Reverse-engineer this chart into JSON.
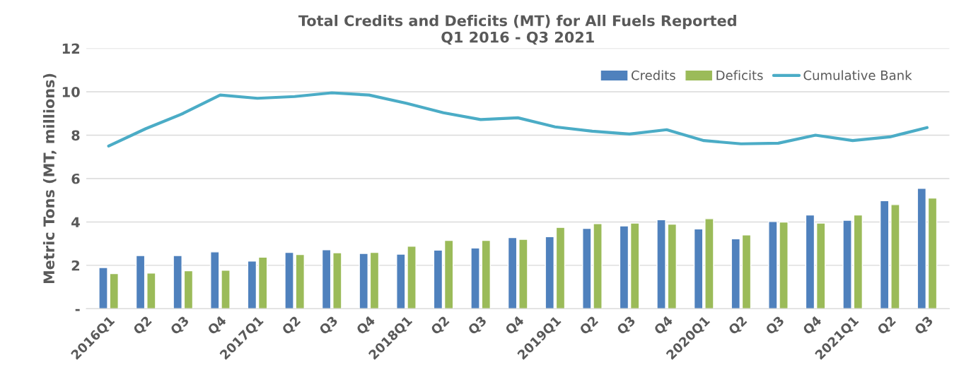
{
  "chart_data": {
    "type": "bar",
    "title": "Total Credits and Deficits (MT) for All Fuels Reported\nQ1 2016 - Q3 2021",
    "ylabel": "Metric Tons (MT, millions)",
    "categories": [
      "2016Q1",
      "Q2",
      "Q3",
      "Q4",
      "2017Q1",
      "Q2",
      "Q3",
      "Q4",
      "2018Q1",
      "Q2",
      "Q3",
      "Q4",
      "2019Q1",
      "Q2",
      "Q3",
      "Q4",
      "2020Q1",
      "Q2",
      "Q3",
      "Q4",
      "2021Q1",
      "Q2",
      "Q3"
    ],
    "series": [
      {
        "name": "Credits",
        "color": "#4f81bd",
        "values": [
          1.9,
          2.45,
          2.45,
          2.62,
          2.2,
          2.6,
          2.72,
          2.55,
          2.52,
          2.7,
          2.8,
          3.28,
          3.32,
          3.7,
          3.82,
          4.1,
          3.68,
          3.22,
          4.02,
          4.32,
          4.08,
          4.98,
          5.55
        ]
      },
      {
        "name": "Deficits",
        "color": "#9bbb59",
        "values": [
          1.62,
          1.65,
          1.75,
          1.78,
          2.38,
          2.5,
          2.58,
          2.6,
          2.88,
          3.15,
          3.15,
          3.2,
          3.75,
          3.92,
          3.95,
          3.9,
          4.15,
          3.4,
          4.0,
          3.95,
          4.32,
          4.8,
          5.1
        ]
      },
      {
        "name": "Cumulative Bank",
        "type": "line",
        "color": "#4bacc6",
        "values": [
          7.5,
          8.3,
          9.0,
          9.85,
          9.7,
          9.78,
          9.95,
          9.85,
          9.47,
          9.03,
          8.72,
          8.8,
          8.38,
          8.18,
          8.05,
          8.25,
          7.75,
          7.6,
          7.63,
          8.0,
          7.75,
          7.92,
          8.35
        ]
      }
    ],
    "ylim": [
      0,
      12
    ],
    "yticks": [
      {
        "value": 0,
        "label": "-"
      },
      2,
      4,
      6,
      8,
      10,
      12
    ],
    "grid": "y",
    "legend": "top right",
    "marker": "none",
    "line_style": "solid"
  }
}
